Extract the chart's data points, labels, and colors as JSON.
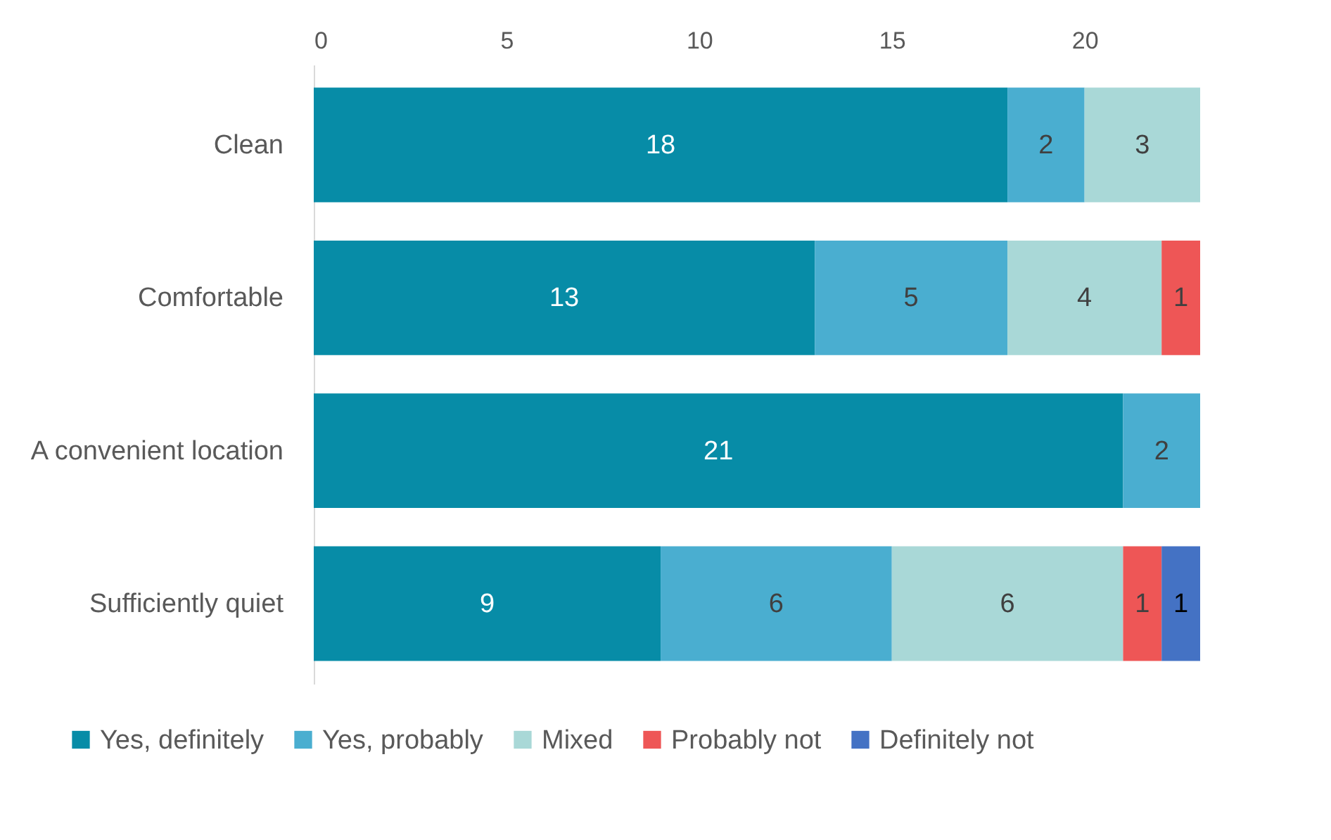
{
  "chart_data": {
    "type": "bar",
    "orientation": "horizontal",
    "stacked": true,
    "categories": [
      "Clean",
      "Comfortable",
      "A convenient location",
      "Sufficiently quiet"
    ],
    "series": [
      {
        "name": "Yes, definitely",
        "color": "#078ca7",
        "values": [
          18,
          13,
          21,
          9
        ]
      },
      {
        "name": "Yes, probably",
        "color": "#4aaed0",
        "values": [
          2,
          5,
          2,
          6
        ]
      },
      {
        "name": "Mixed",
        "color": "#a9d8d7",
        "values": [
          3,
          4,
          null,
          6
        ]
      },
      {
        "name": "Probably not",
        "color": "#ee5656",
        "values": [
          null,
          1,
          null,
          1
        ]
      },
      {
        "name": "Definitely not",
        "color": "#4472c4",
        "values": [
          null,
          null,
          null,
          1
        ]
      }
    ],
    "xlim": [
      0,
      23
    ],
    "xticks": [
      0,
      5,
      10,
      15,
      20
    ],
    "data_labels": true,
    "legend": "bottom",
    "grid": false
  }
}
